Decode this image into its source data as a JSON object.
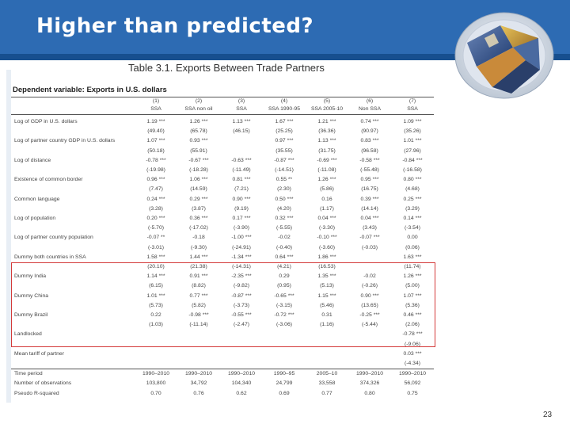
{
  "slide": {
    "title": "Higher than predicted?",
    "page_number": "23"
  },
  "table": {
    "title": "Table 3.1. Exports Between Trade Partners",
    "dependent_variable": "Dependent variable: Exports in U.S. dollars",
    "col_numbers": [
      "(1)",
      "(2)",
      "(3)",
      "(4)",
      "(5)",
      "(6)",
      "(7)"
    ],
    "col_labels": [
      "SSA",
      "SSA non oil",
      "SSA",
      "SSA 1990-95",
      "SSA 2005-10",
      "Non SSA",
      "SSA"
    ],
    "rows": [
      {
        "label": "Log of GDP in U.S. dollars",
        "values": [
          "1.19 ***",
          "1.26 ***",
          "1.13 ***",
          "1.67 ***",
          "1.21 ***",
          "0.74 ***",
          "1.09 ***"
        ]
      },
      {
        "label": "",
        "values": [
          "(49.40)",
          "(65.78)",
          "(46.15)",
          "(25.25)",
          "(36.36)",
          "(90.97)",
          "(35.26)"
        ]
      },
      {
        "label": "Log of partner country GDP in U.S. dollars",
        "values": [
          "1.07 ***",
          "0.93 ***",
          "",
          "0.97 ***",
          "1.13 ***",
          "0.83 ***",
          "1.01 ***"
        ]
      },
      {
        "label": "",
        "values": [
          "(50.18)",
          "(55.91)",
          "",
          "(35.55)",
          "(31.75)",
          "(96.58)",
          "(27.96)"
        ]
      },
      {
        "label": "Log of distance",
        "values": [
          "-0.78 ***",
          "-0.67 ***",
          "-0.63 ***",
          "-0.87 ***",
          "-0.69 ***",
          "-0.58 ***",
          "-0.84 ***"
        ]
      },
      {
        "label": "",
        "values": [
          "(-19.98)",
          "(-18.28)",
          "(-11.49)",
          "(-14.51)",
          "(-11.08)",
          "(-55.48)",
          "(-16.58)"
        ]
      },
      {
        "label": "Existence of common border",
        "values": [
          "0.96 ***",
          "1.06 ***",
          "0.81 ***",
          "0.55 **",
          "1.26 ***",
          "0.95 ***",
          "0.80 ***"
        ]
      },
      {
        "label": "",
        "values": [
          "(7.47)",
          "(14.59)",
          "(7.21)",
          "(2.30)",
          "(5.86)",
          "(16.75)",
          "(4.68)"
        ]
      },
      {
        "label": "Common language",
        "values": [
          "0.24 ***",
          "0.29 ***",
          "0.90 ***",
          "0.50 ***",
          "0.16",
          "0.39 ***",
          "0.25 ***"
        ]
      },
      {
        "label": "",
        "values": [
          "(3.28)",
          "(3.87)",
          "(9.19)",
          "(4.20)",
          "(1.17)",
          "(14.14)",
          "(3.29)"
        ]
      },
      {
        "label": "Log of population",
        "values": [
          "0.20 ***",
          "0.36 ***",
          "0.17 ***",
          "0.32 ***",
          "0.04 ***",
          "0.04 ***",
          "0.14 ***"
        ]
      },
      {
        "label": "",
        "values": [
          "(-5.70)",
          "(-17.02)",
          "(-3.90)",
          "(-5.55)",
          "(-3.30)",
          "(3.43)",
          "(-3.54)"
        ]
      },
      {
        "label": "Log of partner country population",
        "values": [
          "-0.07 **",
          "-0.18",
          "-1.00 ***",
          "-0.02",
          "-0.10 ***",
          "-0.07 ***",
          "0.00"
        ]
      },
      {
        "label": "",
        "values": [
          "(-3.01)",
          "(-9.30)",
          "(-24.91)",
          "(-0.40)",
          "(-3.60)",
          "(-0.03)",
          "(0.06)"
        ]
      },
      {
        "label": "Dummy both countries in SSA",
        "values": [
          "1.58 ***",
          "1.44 ***",
          "-1.34 ***",
          "0.64 ***",
          "1.86 ***",
          "",
          "1.63 ***"
        ]
      },
      {
        "label": "",
        "values": [
          "(20.10)",
          "(21.38)",
          "(-14.31)",
          "(4.21)",
          "(16.53)",
          "",
          "(11.74)"
        ]
      },
      {
        "label": "Dummy India",
        "values": [
          "1.14 ***",
          "0.91 ***",
          "-2.35 ***",
          "0.29",
          "1.35 ***",
          "-0.02",
          "1.26 ***"
        ]
      },
      {
        "label": "",
        "values": [
          "(6.15)",
          "(8.82)",
          "(-9.82)",
          "(0.95)",
          "(5.13)",
          "(-0.26)",
          "(5.00)"
        ]
      },
      {
        "label": "Dummy China",
        "values": [
          "1.01 ***",
          "0.77 ***",
          "-0.87 ***",
          "-0.65 ***",
          "1.15 ***",
          "0.90 ***",
          "1.07 ***"
        ]
      },
      {
        "label": "",
        "values": [
          "(5.73)",
          "(5.82)",
          "(-3.73)",
          "(-3.15)",
          "(5.46)",
          "(13.65)",
          "(5.36)"
        ]
      },
      {
        "label": "Dummy Brazil",
        "values": [
          "0.22",
          "-0.98 ***",
          "-0.55 ***",
          "-0.72 ***",
          "0.31",
          "-0.25 ***",
          "0.46 ***"
        ]
      },
      {
        "label": "",
        "values": [
          "(1.03)",
          "(-11.14)",
          "(-2.47)",
          "(-3.06)",
          "(1.16)",
          "(-5.44)",
          "(2.06)"
        ]
      },
      {
        "label": "Landlocked",
        "values": [
          "",
          "",
          "",
          "",
          "",
          "",
          "-0.78 ***"
        ]
      },
      {
        "label": "",
        "values": [
          "",
          "",
          "",
          "",
          "",
          "",
          "(-9.06)"
        ]
      },
      {
        "label": "Mean tariff of partner",
        "values": [
          "",
          "",
          "",
          "",
          "",
          "",
          "0.03 ***"
        ]
      },
      {
        "label": "",
        "values": [
          "",
          "",
          "",
          "",
          "",
          "",
          "(-4.34)"
        ]
      }
    ],
    "footer_rows": [
      {
        "label": "Time period",
        "values": [
          "1990–2010",
          "1990–2010",
          "1990–2010",
          "1990–95",
          "2005–10",
          "1990–2010",
          "1990–2010"
        ]
      },
      {
        "label": "Number of observations",
        "values": [
          "103,800",
          "34,792",
          "104,340",
          "24,799",
          "33,558",
          "374,326",
          "56,092"
        ]
      },
      {
        "label": "Pseudo R-squared",
        "values": [
          "0.70",
          "0.76",
          "0.62",
          "0.69",
          "0.77",
          "0.80",
          "0.75"
        ]
      }
    ]
  },
  "colors": {
    "header_bg": "#2d6bb3",
    "header_line": "#174f8f",
    "highlight_box": "#d43a3a"
  }
}
